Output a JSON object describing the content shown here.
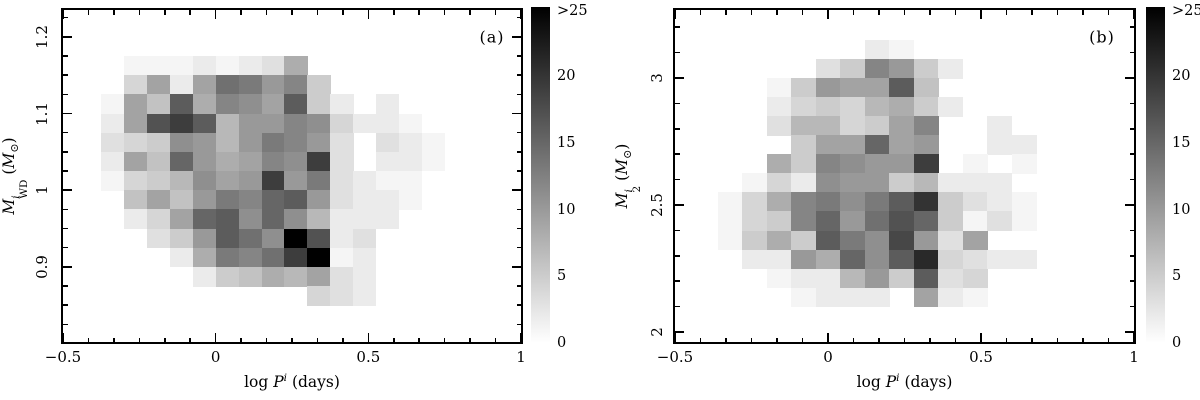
{
  "figure": {
    "background": "#ffffff",
    "foreground": "#000000",
    "type": "two-panel grayscale 2D histogram"
  },
  "colorbar": {
    "orientation": "vertical",
    "top_color": "#000000",
    "bottom_color": "#ffffff",
    "value_min": 0,
    "value_max": 25.2,
    "tick_labels": [
      {
        "v": 25,
        "label": ">25"
      },
      {
        "v": 20,
        "label": "20"
      },
      {
        "v": 15,
        "label": "15"
      },
      {
        "v": 10,
        "label": "10"
      },
      {
        "v": 5,
        "label": "5"
      },
      {
        "v": 0,
        "label": "0"
      }
    ]
  },
  "chart_data": [
    {
      "panel": "a",
      "type": "heatmap",
      "title": "(a)",
      "xlabel_segments": [
        {
          "text": "log ",
          "style": "roman"
        },
        {
          "text": "P",
          "style": "italic"
        },
        {
          "text": "i",
          "style": "sup"
        },
        {
          "text": " (days)",
          "style": "roman"
        }
      ],
      "ylabel_segments": [
        {
          "text": "M",
          "style": "italic"
        },
        {
          "sup": "i",
          "sub": "WD"
        },
        {
          "text": " (",
          "style": "roman"
        },
        {
          "text": "M",
          "style": "italic"
        },
        {
          "text": "⊙",
          "style": "sub"
        },
        {
          "text": ")",
          "style": "roman"
        }
      ],
      "xlim": [
        -0.5,
        1.0
      ],
      "ylim": [
        0.802,
        1.235
      ],
      "x_ticks": [
        {
          "v": -0.5,
          "label": "−0.5"
        },
        {
          "v": 0,
          "label": "0"
        },
        {
          "v": 0.5,
          "label": "0.5"
        },
        {
          "v": 1,
          "label": "1"
        }
      ],
      "x_minor_step": 0.083333,
      "y_ticks": [
        {
          "v": 0.9,
          "label": "0.9"
        },
        {
          "v": 1.0,
          "label": "1"
        },
        {
          "v": 1.1,
          "label": "1.1"
        },
        {
          "v": 1.2,
          "label": "1.2"
        }
      ],
      "y_minor_step": 0.025,
      "bins": {
        "x0": -0.375,
        "dx": 0.075,
        "y_top": 1.175,
        "dy": 0.025
      },
      "value_note": "counts per bin; 26 means >25 (black)",
      "values": [
        [
          0,
          1,
          1,
          1,
          2,
          1,
          2,
          3,
          8,
          0,
          0,
          0,
          0,
          0,
          0,
          0
        ],
        [
          0,
          4,
          9,
          2,
          9,
          14,
          13,
          10,
          12,
          5,
          0,
          0,
          0,
          0,
          0,
          0
        ],
        [
          1,
          9,
          6,
          16,
          8,
          12,
          11,
          9,
          16,
          5,
          2,
          0,
          2,
          0,
          0,
          0
        ],
        [
          2,
          9,
          17,
          19,
          16,
          7,
          10,
          10,
          12,
          11,
          4,
          2,
          2,
          1,
          0,
          0
        ],
        [
          3,
          4,
          5,
          11,
          10,
          7,
          10,
          13,
          12,
          10,
          3,
          0,
          3,
          2,
          1,
          0
        ],
        [
          2,
          9,
          6,
          15,
          10,
          8,
          9,
          12,
          11,
          19,
          3,
          0,
          2,
          2,
          1,
          0
        ],
        [
          1,
          4,
          5,
          7,
          11,
          9,
          10,
          19,
          10,
          13,
          3,
          2,
          1,
          1,
          0,
          0
        ],
        [
          0,
          6,
          9,
          6,
          10,
          13,
          12,
          15,
          16,
          10,
          3,
          2,
          2,
          1,
          0,
          0
        ],
        [
          0,
          2,
          4,
          9,
          15,
          16,
          11,
          15,
          11,
          7,
          2,
          2,
          2,
          0,
          0,
          0
        ],
        [
          0,
          0,
          3,
          5,
          10,
          16,
          14,
          11,
          26,
          17,
          2,
          3,
          0,
          0,
          0,
          0
        ],
        [
          0,
          0,
          0,
          2,
          8,
          13,
          12,
          14,
          19,
          26,
          1,
          2,
          0,
          0,
          0,
          0
        ],
        [
          0,
          0,
          0,
          0,
          2,
          5,
          6,
          8,
          7,
          9,
          3,
          2,
          0,
          0,
          0,
          0
        ],
        [
          0,
          0,
          0,
          0,
          0,
          0,
          0,
          0,
          0,
          4,
          3,
          2,
          0,
          0,
          0,
          0
        ]
      ]
    },
    {
      "panel": "b",
      "type": "heatmap",
      "title": "(b)",
      "xlabel_segments": [
        {
          "text": "log ",
          "style": "roman"
        },
        {
          "text": "P",
          "style": "italic"
        },
        {
          "text": "i",
          "style": "sup"
        },
        {
          "text": " (days)",
          "style": "roman"
        }
      ],
      "ylabel_segments": [
        {
          "text": "M",
          "style": "italic"
        },
        {
          "sup": "i",
          "sub": "2"
        },
        {
          "text": " (",
          "style": "roman"
        },
        {
          "text": "M",
          "style": "italic"
        },
        {
          "text": "⊙",
          "style": "sub"
        },
        {
          "text": ")",
          "style": "roman"
        }
      ],
      "xlim": [
        -0.5,
        1.0
      ],
      "ylim": [
        1.961,
        3.268
      ],
      "x_ticks": [
        {
          "v": -0.5,
          "label": "−0.5"
        },
        {
          "v": 0,
          "label": "0"
        },
        {
          "v": 0.5,
          "label": "0.5"
        },
        {
          "v": 1,
          "label": "1"
        }
      ],
      "x_minor_step": 0.083333,
      "y_ticks": [
        {
          "v": 2,
          "label": "2"
        },
        {
          "v": 2.5,
          "label": "2.5"
        },
        {
          "v": 3,
          "label": "3"
        }
      ],
      "y_minor_step": 0.1,
      "bins": {
        "x0": -0.36,
        "dx": 0.08,
        "y_top": 3.15,
        "dy": 0.075
      },
      "value_note": "counts per bin; 26 means >25 (black)",
      "values": [
        [
          0,
          0,
          0,
          0,
          0,
          0,
          2,
          1,
          0,
          0,
          0,
          0,
          0,
          0,
          0
        ],
        [
          0,
          0,
          0,
          0,
          3,
          5,
          12,
          10,
          5,
          2,
          0,
          0,
          0,
          0,
          0
        ],
        [
          0,
          0,
          1,
          5,
          10,
          9,
          9,
          16,
          6,
          0,
          0,
          0,
          0,
          0,
          0
        ],
        [
          0,
          0,
          2,
          4,
          5,
          4,
          7,
          8,
          5,
          2,
          0,
          0,
          0,
          0,
          0
        ],
        [
          0,
          0,
          3,
          7,
          7,
          4,
          5,
          9,
          12,
          0,
          0,
          2,
          0,
          0,
          0
        ],
        [
          0,
          0,
          0,
          5,
          9,
          9,
          15,
          9,
          10,
          0,
          0,
          2,
          2,
          0,
          0
        ],
        [
          0,
          0,
          8,
          5,
          12,
          11,
          10,
          10,
          19,
          0,
          1,
          0,
          1,
          0,
          0
        ],
        [
          0,
          1,
          4,
          2,
          11,
          10,
          10,
          5,
          7,
          2,
          2,
          2,
          0,
          0,
          0
        ],
        [
          1,
          4,
          8,
          12,
          13,
          11,
          13,
          16,
          20,
          5,
          3,
          2,
          1,
          0,
          0
        ],
        [
          1,
          4,
          5,
          12,
          15,
          10,
          14,
          17,
          15,
          5,
          1,
          3,
          1,
          0,
          0
        ],
        [
          1,
          5,
          8,
          5,
          16,
          13,
          11,
          18,
          10,
          3,
          9,
          0,
          0,
          0,
          0
        ],
        [
          0,
          2,
          2,
          10,
          8,
          15,
          11,
          16,
          21,
          4,
          3,
          2,
          2,
          0,
          0
        ],
        [
          0,
          0,
          1,
          2,
          2,
          7,
          10,
          5,
          16,
          3,
          4,
          0,
          0,
          0,
          0
        ],
        [
          0,
          0,
          0,
          1,
          2,
          2,
          2,
          0,
          9,
          2,
          1,
          0,
          0,
          0,
          0
        ]
      ]
    }
  ]
}
